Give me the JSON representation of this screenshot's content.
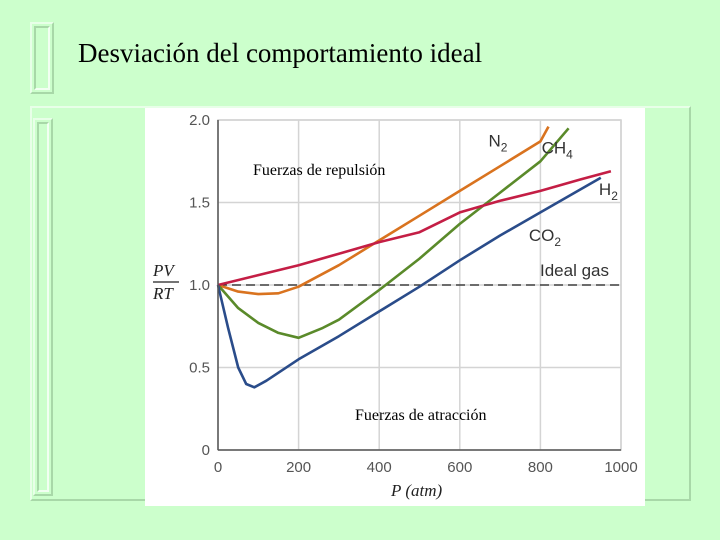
{
  "slide": {
    "title": "Desviación del comportamiento ideal"
  },
  "chart_data": {
    "type": "line",
    "xlabel": "P (atm)",
    "ylabel_num": "PV",
    "ylabel_den": "RT",
    "xlim": [
      0,
      1000
    ],
    "ylim": [
      0,
      2.0
    ],
    "x_ticks": [
      0,
      200,
      400,
      600,
      800,
      1000
    ],
    "y_ticks": [
      0,
      0.5,
      1.0,
      1.5,
      2.0
    ],
    "x_tick_labels": [
      "0",
      "200",
      "400",
      "600",
      "800",
      "1000"
    ],
    "y_tick_labels": [
      "0",
      "0.5",
      "1.0",
      "1.5",
      "2.0"
    ],
    "grid": true,
    "annotations": {
      "repulsion": "Fuerzas de repulsión",
      "attraction": "Fuerzas de atracción"
    },
    "reference": {
      "name": "Ideal gas",
      "value": 1.0,
      "style": "dashed"
    },
    "series": [
      {
        "name": "N2",
        "label_main": "N",
        "label_sub": "2",
        "color": "#d9731f",
        "points": [
          [
            0,
            1.0
          ],
          [
            50,
            0.96
          ],
          [
            100,
            0.945
          ],
          [
            150,
            0.95
          ],
          [
            200,
            0.99
          ],
          [
            300,
            1.12
          ],
          [
            400,
            1.27
          ],
          [
            500,
            1.42
          ],
          [
            600,
            1.57
          ],
          [
            700,
            1.72
          ],
          [
            800,
            1.87
          ],
          [
            820,
            1.96
          ]
        ]
      },
      {
        "name": "CH4",
        "label_main": "CH",
        "label_sub": "4",
        "color": "#5a8a2a",
        "points": [
          [
            0,
            1.0
          ],
          [
            50,
            0.86
          ],
          [
            100,
            0.77
          ],
          [
            150,
            0.71
          ],
          [
            200,
            0.68
          ],
          [
            260,
            0.74
          ],
          [
            300,
            0.79
          ],
          [
            400,
            0.97
          ],
          [
            500,
            1.16
          ],
          [
            600,
            1.37
          ],
          [
            700,
            1.56
          ],
          [
            800,
            1.75
          ],
          [
            870,
            1.95
          ]
        ]
      },
      {
        "name": "H2",
        "label_main": "H",
        "label_sub": "2",
        "color": "#c41e45",
        "points": [
          [
            0,
            1.0
          ],
          [
            100,
            1.06
          ],
          [
            200,
            1.12
          ],
          [
            300,
            1.19
          ],
          [
            400,
            1.26
          ],
          [
            500,
            1.32
          ],
          [
            600,
            1.44
          ],
          [
            700,
            1.51
          ],
          [
            800,
            1.57
          ],
          [
            900,
            1.64
          ],
          [
            975,
            1.69
          ]
        ]
      },
      {
        "name": "CO2",
        "label_main": "CO",
        "label_sub": "2",
        "color": "#2a4c8a",
        "points": [
          [
            0,
            1.0
          ],
          [
            25,
            0.74
          ],
          [
            50,
            0.5
          ],
          [
            70,
            0.4
          ],
          [
            90,
            0.38
          ],
          [
            120,
            0.42
          ],
          [
            200,
            0.55
          ],
          [
            300,
            0.69
          ],
          [
            400,
            0.84
          ],
          [
            500,
            0.99
          ],
          [
            600,
            1.15
          ],
          [
            700,
            1.3
          ],
          [
            800,
            1.44
          ],
          [
            900,
            1.58
          ],
          [
            950,
            1.65
          ]
        ]
      }
    ]
  }
}
